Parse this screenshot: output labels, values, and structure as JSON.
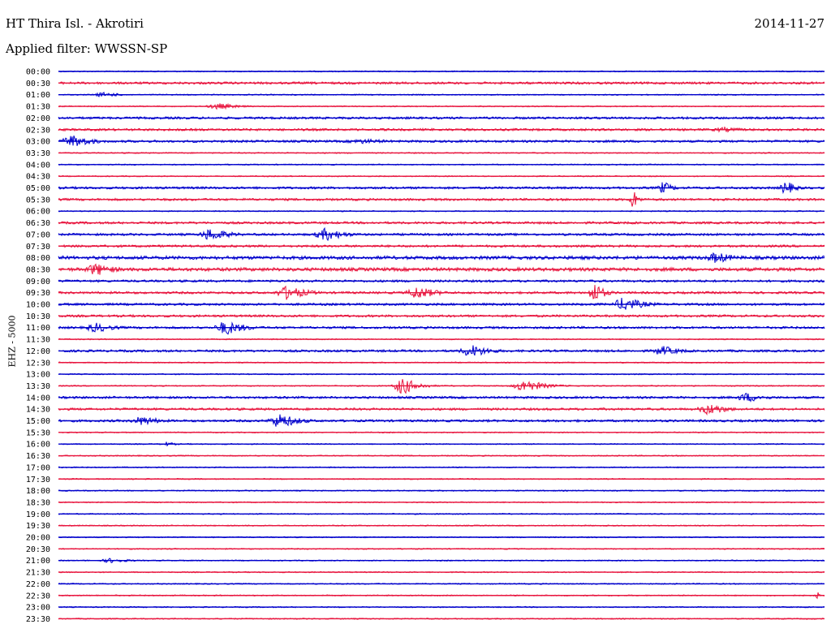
{
  "header": {
    "station": "HT Thira Isl. - Akrotiri",
    "date": "2014-11-27",
    "filter": "Applied filter: WWSSN-SP",
    "channel": "EHZ - 5000"
  },
  "colors": {
    "odd_row": "#0000cc",
    "even_row": "#e8163f",
    "text": "#000000"
  },
  "chart_data": {
    "type": "line",
    "title": "HT Thira Isl. - Akrotiri",
    "subtitle": "Applied filter: WWSSN-SP",
    "ylabel": "EHZ - 5000",
    "row_labels": [
      "00:00",
      "00:30",
      "01:00",
      "01:30",
      "02:00",
      "02:30",
      "03:00",
      "03:30",
      "04:00",
      "04:30",
      "05:00",
      "05:30",
      "06:00",
      "06:30",
      "07:00",
      "07:30",
      "08:00",
      "08:30",
      "09:00",
      "09:30",
      "10:00",
      "10:30",
      "11:00",
      "11:30",
      "12:00",
      "12:30",
      "13:00",
      "13:30",
      "14:00",
      "14:30",
      "15:00",
      "15:30",
      "16:00",
      "16:30",
      "17:00",
      "17:30",
      "18:00",
      "18:30",
      "19:00",
      "19:30",
      "20:00",
      "20:30",
      "21:00",
      "21:30",
      "22:00",
      "22:30",
      "23:00",
      "23:30"
    ],
    "row_noise": [
      1,
      2,
      1,
      1,
      2,
      2,
      2,
      1,
      1,
      1,
      2,
      2,
      1,
      2,
      2,
      2,
      3,
      3,
      2,
      2,
      2,
      2,
      2,
      1,
      2,
      1,
      1,
      1,
      2,
      2,
      2,
      1,
      1,
      1,
      1,
      1,
      1,
      1,
      1,
      1,
      1,
      1,
      1,
      1,
      1,
      1,
      1,
      1
    ],
    "events": [
      {
        "row": "01:00",
        "pos": 0.06,
        "amp": 3,
        "width": 0.02
      },
      {
        "row": "01:30",
        "pos": 0.21,
        "amp": 4,
        "width": 0.02
      },
      {
        "row": "02:30",
        "pos": 0.87,
        "amp": 3,
        "width": 0.03
      },
      {
        "row": "03:00",
        "pos": 0.02,
        "amp": 8,
        "width": 0.02
      },
      {
        "row": "03:00",
        "pos": 0.4,
        "amp": 3,
        "width": 0.04
      },
      {
        "row": "05:00",
        "pos": 0.79,
        "amp": 8,
        "width": 0.01
      },
      {
        "row": "05:00",
        "pos": 0.95,
        "amp": 9,
        "width": 0.01
      },
      {
        "row": "05:30",
        "pos": 0.75,
        "amp": 14,
        "width": 0.005
      },
      {
        "row": "07:00",
        "pos": 0.2,
        "amp": 8,
        "width": 0.02
      },
      {
        "row": "07:00",
        "pos": 0.35,
        "amp": 8,
        "width": 0.02
      },
      {
        "row": "08:00",
        "pos": 0.86,
        "amp": 7,
        "width": 0.02
      },
      {
        "row": "08:30",
        "pos": 0.05,
        "amp": 8,
        "width": 0.02
      },
      {
        "row": "09:30",
        "pos": 0.3,
        "amp": 9,
        "width": 0.02
      },
      {
        "row": "09:30",
        "pos": 0.47,
        "amp": 8,
        "width": 0.02
      },
      {
        "row": "09:30",
        "pos": 0.7,
        "amp": 13,
        "width": 0.01
      },
      {
        "row": "10:00",
        "pos": 0.74,
        "amp": 9,
        "width": 0.02
      },
      {
        "row": "11:00",
        "pos": 0.05,
        "amp": 6,
        "width": 0.02
      },
      {
        "row": "11:00",
        "pos": 0.22,
        "amp": 9,
        "width": 0.02
      },
      {
        "row": "12:00",
        "pos": 0.54,
        "amp": 8,
        "width": 0.02
      },
      {
        "row": "12:00",
        "pos": 0.79,
        "amp": 6,
        "width": 0.02
      },
      {
        "row": "13:30",
        "pos": 0.45,
        "amp": 11,
        "width": 0.015
      },
      {
        "row": "13:30",
        "pos": 0.61,
        "amp": 8,
        "width": 0.02
      },
      {
        "row": "14:00",
        "pos": 0.9,
        "amp": 6,
        "width": 0.02
      },
      {
        "row": "14:30",
        "pos": 0.85,
        "amp": 7,
        "width": 0.02
      },
      {
        "row": "15:00",
        "pos": 0.11,
        "amp": 6,
        "width": 0.02
      },
      {
        "row": "15:00",
        "pos": 0.29,
        "amp": 9,
        "width": 0.02
      },
      {
        "row": "16:00",
        "pos": 0.14,
        "amp": 3,
        "width": 0.01
      },
      {
        "row": "21:00",
        "pos": 0.07,
        "amp": 3,
        "width": 0.02
      },
      {
        "row": "22:30",
        "pos": 0.99,
        "amp": 9,
        "width": 0.002
      }
    ]
  }
}
